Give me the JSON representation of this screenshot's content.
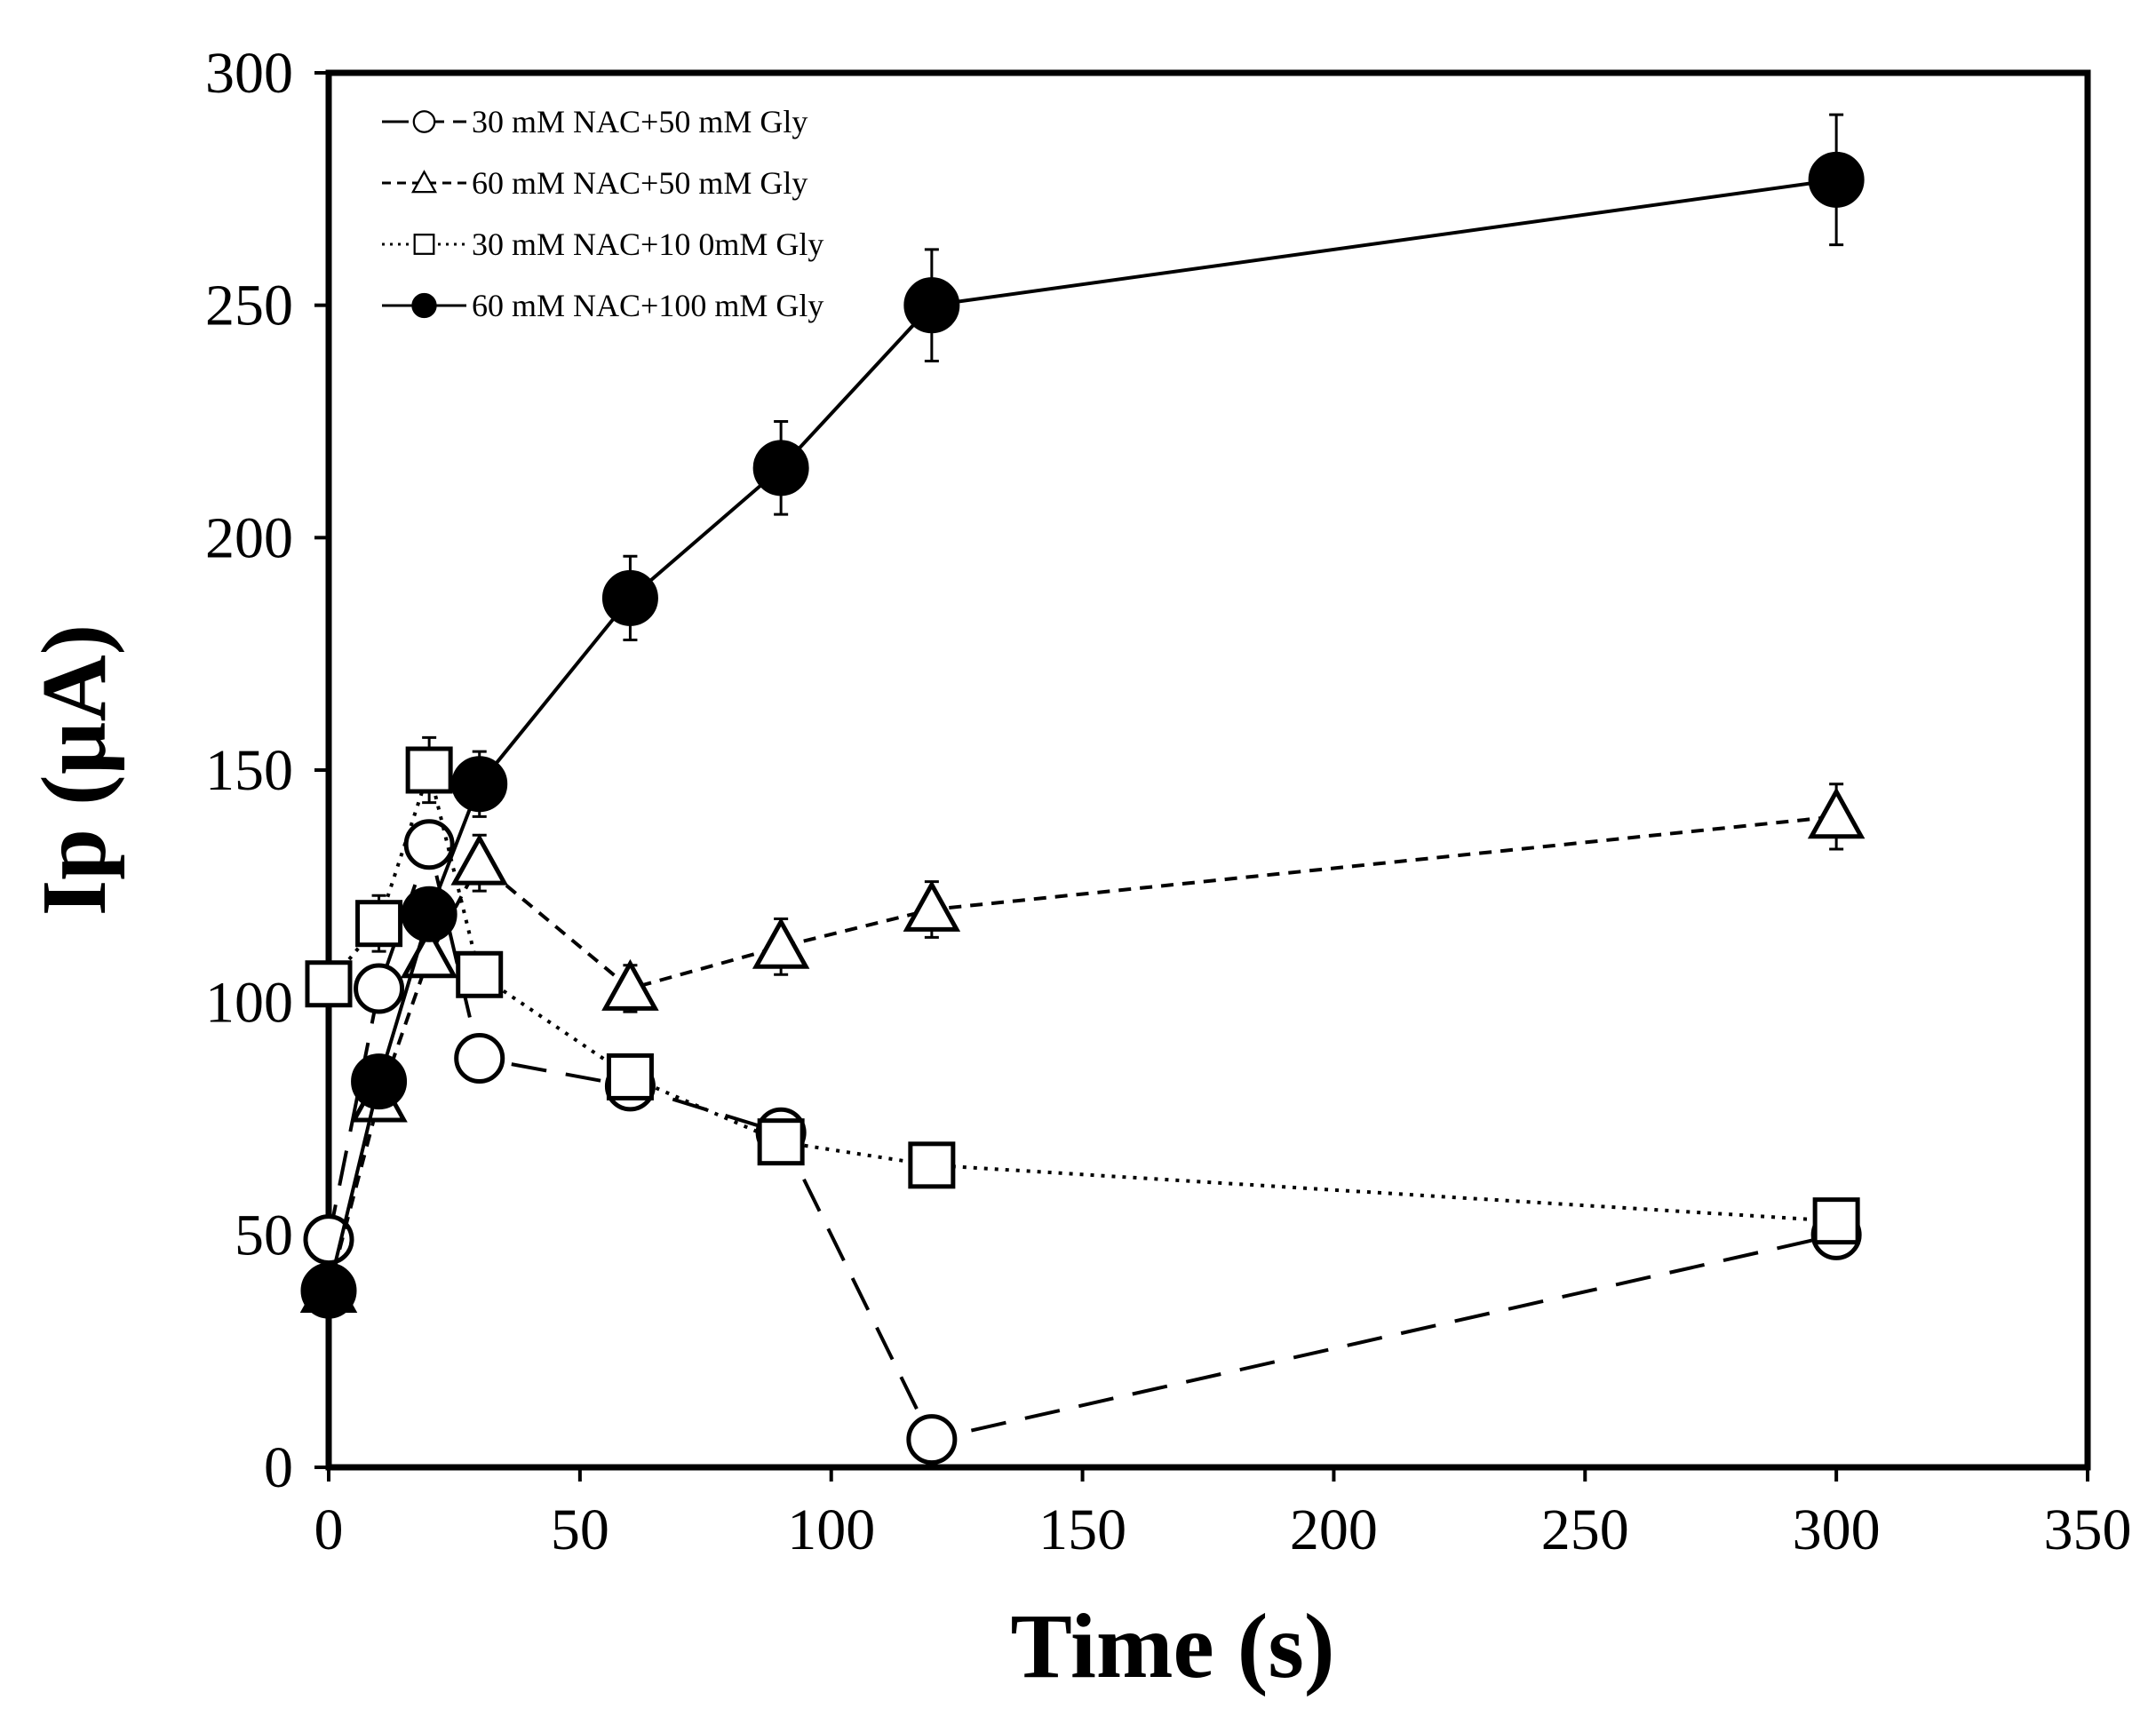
{
  "chart_data": {
    "type": "line",
    "title": "",
    "xlabel": "Time (s)",
    "ylabel": "Ip (µA)",
    "xlim": [
      0,
      350
    ],
    "ylim": [
      0,
      300
    ],
    "x_ticks": [
      0,
      50,
      100,
      150,
      200,
      250,
      300,
      350
    ],
    "y_ticks": [
      0,
      50,
      100,
      150,
      200,
      250,
      300
    ],
    "grid": false,
    "legend_position": "top-left",
    "series": [
      {
        "name": "30 mM NAC+50 mM Gly",
        "marker": "open-circle",
        "line_style": "long-dash",
        "x": [
          0,
          10,
          20,
          30,
          60,
          90,
          120,
          300
        ],
        "y": [
          49,
          103,
          134,
          88,
          82,
          72,
          6,
          50
        ],
        "error": [
          0,
          0,
          0,
          0,
          0,
          3,
          0,
          2
        ]
      },
      {
        "name": "60 mM NAC+50 mM Gly",
        "marker": "open-triangle",
        "line_style": "short-dash",
        "x": [
          0,
          10,
          20,
          30,
          60,
          90,
          120,
          300
        ],
        "y": [
          38,
          79,
          110,
          130,
          103,
          112,
          120,
          140
        ],
        "error": [
          0,
          0,
          0,
          6,
          5,
          6,
          6,
          7
        ]
      },
      {
        "name": "30 mM NAC+10 0mM Gly",
        "marker": "open-square",
        "line_style": "dotted",
        "x": [
          0,
          10,
          20,
          30,
          60,
          90,
          120,
          300
        ],
        "y": [
          104,
          117,
          150,
          106,
          84,
          70,
          65,
          53
        ],
        "error": [
          0,
          6,
          7,
          0,
          0,
          4,
          4,
          3
        ]
      },
      {
        "name": "60 mM NAC+100 mM Gly",
        "marker": "filled-circle",
        "line_style": "solid",
        "x": [
          0,
          10,
          20,
          30,
          60,
          90,
          120,
          300
        ],
        "y": [
          38,
          83,
          119,
          147,
          187,
          215,
          250,
          277
        ],
        "error": [
          0,
          0,
          0,
          7,
          9,
          10,
          12,
          14
        ]
      }
    ]
  }
}
